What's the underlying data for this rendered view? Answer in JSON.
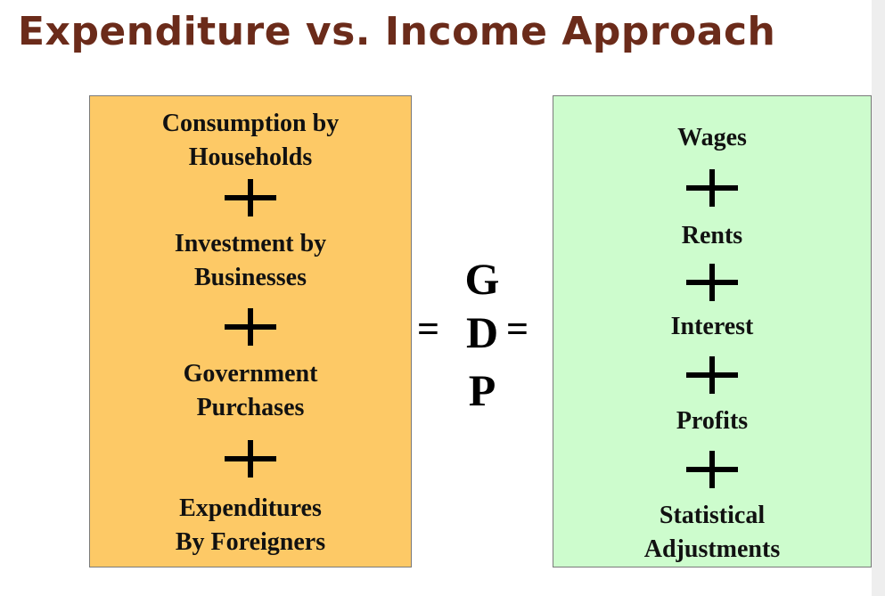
{
  "title": "Expenditure vs. Income Approach",
  "expenditure": {
    "items": [
      {
        "line1": "Consumption by",
        "line2": "Households"
      },
      {
        "line1": "Investment by",
        "line2": "Businesses"
      },
      {
        "line1": "Government",
        "line2": "Purchases"
      },
      {
        "line1": "Expenditures",
        "line2": "By Foreigners"
      }
    ],
    "operator": "+"
  },
  "center": {
    "letters": [
      "G",
      "D",
      "P"
    ],
    "equals_left": "=",
    "equals_right": "="
  },
  "income": {
    "items": [
      {
        "line1": "Wages"
      },
      {
        "line1": "Rents"
      },
      {
        "line1": "Interest"
      },
      {
        "line1": "Profits"
      },
      {
        "line1": "Statistical",
        "line2": "Adjustments"
      }
    ],
    "operator": "+"
  },
  "colors": {
    "title": "#6b2b1a",
    "expenditure_box": "#fdc966",
    "income_box": "#cdfccd"
  }
}
